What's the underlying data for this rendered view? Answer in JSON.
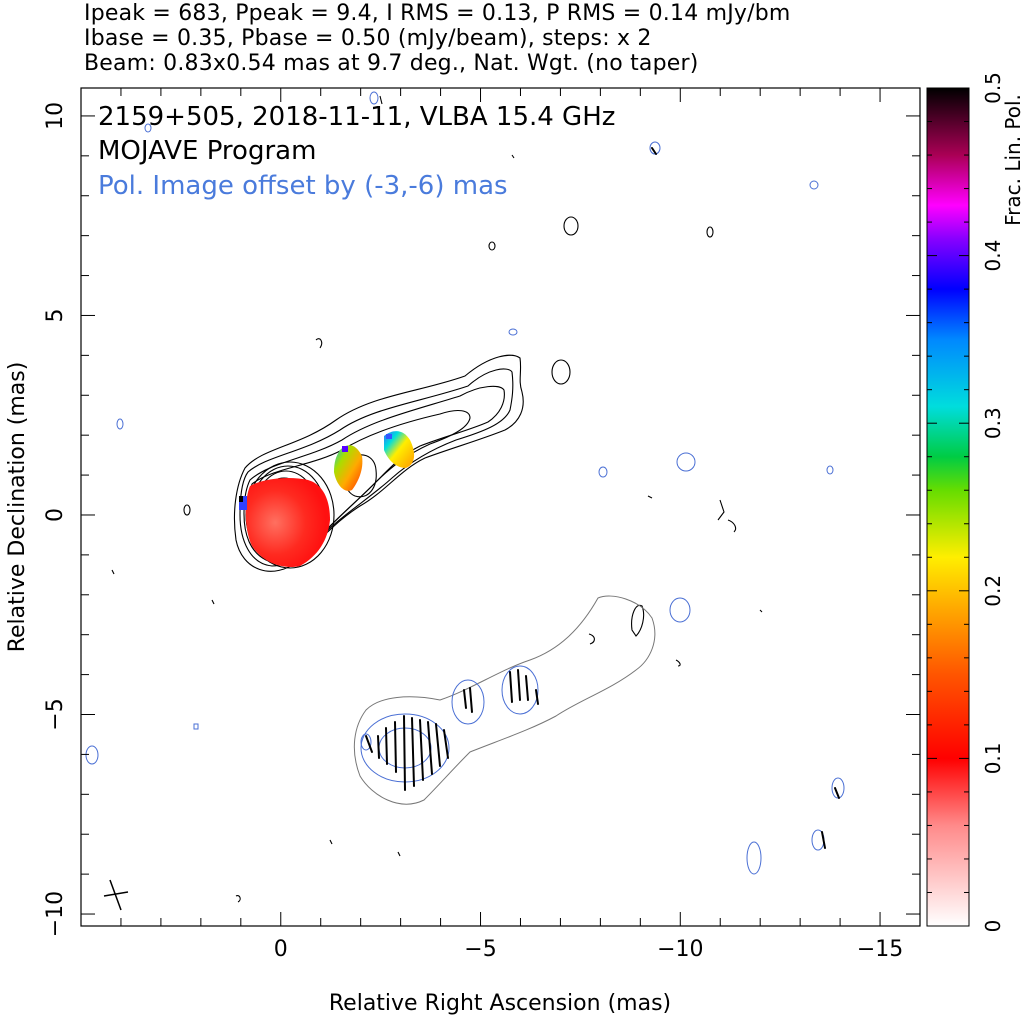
{
  "header": {
    "line1": "Ipeak = 683, Ppeak = 9.4, I RMS = 0.13, P RMS = 0.14 mJy/bm",
    "line2": "Ibase = 0.35, Pbase = 0.50 (mJy/beam), steps: x 2",
    "line3": "Beam: 0.83x0.54 mas at 9.7 deg., Nat. Wgt. (no taper)"
  },
  "annotations": {
    "source": "2159+505, 2018-11-11, VLBA 15.4 GHz",
    "program": "MOJAVE Program",
    "offset": "Pol. Image offset by (-3,-6) mas"
  },
  "colors": {
    "total_intensity_contour": "#000000",
    "pol_contour": "#4a6fd4",
    "offset_text": "#4a7bdc",
    "evpa_vector": "#000000"
  },
  "chart_data": {
    "type": "contour",
    "xlabel": "Relative Right Ascension (mas)",
    "ylabel": "Relative Declination (mas)",
    "xlim": [
      5,
      -16
    ],
    "ylim": [
      -10.3,
      10.7
    ],
    "x_ticks": [
      0,
      -5,
      -10,
      -15
    ],
    "x_tick_labels": [
      "0",
      "−5",
      "−10",
      "−15"
    ],
    "y_ticks": [
      10,
      5,
      0,
      -5,
      -10
    ],
    "y_tick_labels": [
      "10",
      "5",
      "0",
      "−5",
      "−10"
    ],
    "colorbar": {
      "label": "Frac. Lin. Pol.",
      "range": [
        0,
        0.5
      ],
      "ticks": [
        0,
        0.1,
        0.2,
        0.3,
        0.4,
        0.5
      ],
      "tick_labels": [
        "0",
        "0.1",
        "0.2",
        "0.3",
        "0.4",
        "0.5"
      ]
    },
    "intensity_peak_mJy_per_beam": 683,
    "pol_peak_mJy_per_beam": 9.4,
    "contour_base_mJy_per_beam": 0.35,
    "contour_step_factor": 2,
    "pol_offset_mas": [
      -3,
      -6
    ],
    "fractional_pol_regions": [
      {
        "x": -1.0,
        "y": 0.0,
        "fpol": 0.05
      },
      {
        "x": -1.9,
        "y": 1.1,
        "fpol": 0.1
      },
      {
        "x": -3.3,
        "y": 1.7,
        "fpol": 0.18
      }
    ]
  }
}
